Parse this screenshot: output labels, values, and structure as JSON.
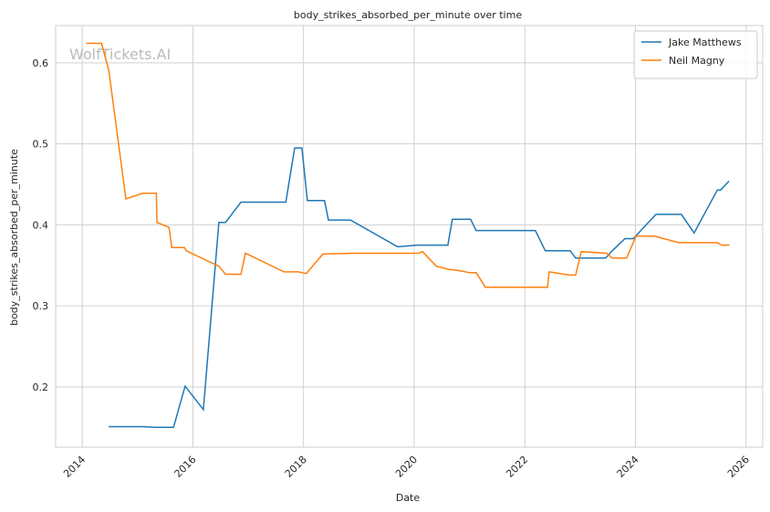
{
  "chart_data": {
    "type": "line",
    "title": "body_strikes_absorbed_per_minute over time",
    "x_label": "Date",
    "y_label": "body_strikes_absorbed_per_minute",
    "watermark": "WolfTickets.AI",
    "xlim": [
      2013.52,
      2026.3
    ],
    "ylim": [
      0.1256,
      0.646
    ],
    "xticks": [
      2014,
      2016,
      2018,
      2020,
      2022,
      2024,
      2026
    ],
    "yticks": [
      0.2,
      0.3,
      0.4,
      0.5,
      0.6
    ],
    "grid": true,
    "legend": "upper right",
    "series": [
      {
        "name": "Jake Matthews",
        "color": "#1f77b4",
        "x": [
          2014.48,
          2015.1,
          2015.32,
          2015.65,
          2015.86,
          2016.19,
          2016.47,
          2016.59,
          2016.87,
          2017.68,
          2017.84,
          2017.97,
          2018.07,
          2018.38,
          2018.45,
          2018.85,
          2019.7,
          2020.05,
          2020.61,
          2020.69,
          2021.02,
          2021.12,
          2022.19,
          2022.37,
          2022.82,
          2022.92,
          2023.46,
          2023.58,
          2023.81,
          2023.96,
          2024.37,
          2024.83,
          2025.06,
          2025.48,
          2025.54,
          2025.69
        ],
        "values": [
          0.151,
          0.151,
          0.15,
          0.15,
          0.201,
          0.172,
          0.403,
          0.403,
          0.428,
          0.428,
          0.495,
          0.495,
          0.43,
          0.43,
          0.406,
          0.406,
          0.373,
          0.375,
          0.375,
          0.407,
          0.407,
          0.393,
          0.393,
          0.368,
          0.368,
          0.359,
          0.359,
          0.368,
          0.383,
          0.383,
          0.413,
          0.413,
          0.39,
          0.443,
          0.443,
          0.454
        ]
      },
      {
        "name": "Neil Magny",
        "color": "#ff7f0e",
        "x": [
          2014.07,
          2014.35,
          2014.48,
          2014.79,
          2015.09,
          2015.34,
          2015.35,
          2015.57,
          2015.62,
          2015.85,
          2015.88,
          2016.47,
          2016.59,
          2016.87,
          2016.95,
          2017.65,
          2017.91,
          2018.05,
          2018.35,
          2018.85,
          2020.08,
          2020.15,
          2020.4,
          2020.63,
          2020.77,
          2021.01,
          2021.12,
          2021.29,
          2022.41,
          2022.44,
          2022.8,
          2022.92,
          2023.02,
          2023.48,
          2023.58,
          2023.84,
          2024.01,
          2024.35,
          2024.78,
          2025.48,
          2025.56,
          2025.7
        ],
        "values": [
          0.624,
          0.624,
          0.591,
          0.432,
          0.439,
          0.439,
          0.403,
          0.397,
          0.372,
          0.372,
          0.368,
          0.349,
          0.339,
          0.339,
          0.365,
          0.342,
          0.342,
          0.34,
          0.364,
          0.365,
          0.365,
          0.367,
          0.349,
          0.345,
          0.344,
          0.341,
          0.341,
          0.323,
          0.323,
          0.342,
          0.338,
          0.338,
          0.367,
          0.365,
          0.359,
          0.359,
          0.386,
          0.386,
          0.378,
          0.378,
          0.375,
          0.375
        ]
      }
    ]
  }
}
